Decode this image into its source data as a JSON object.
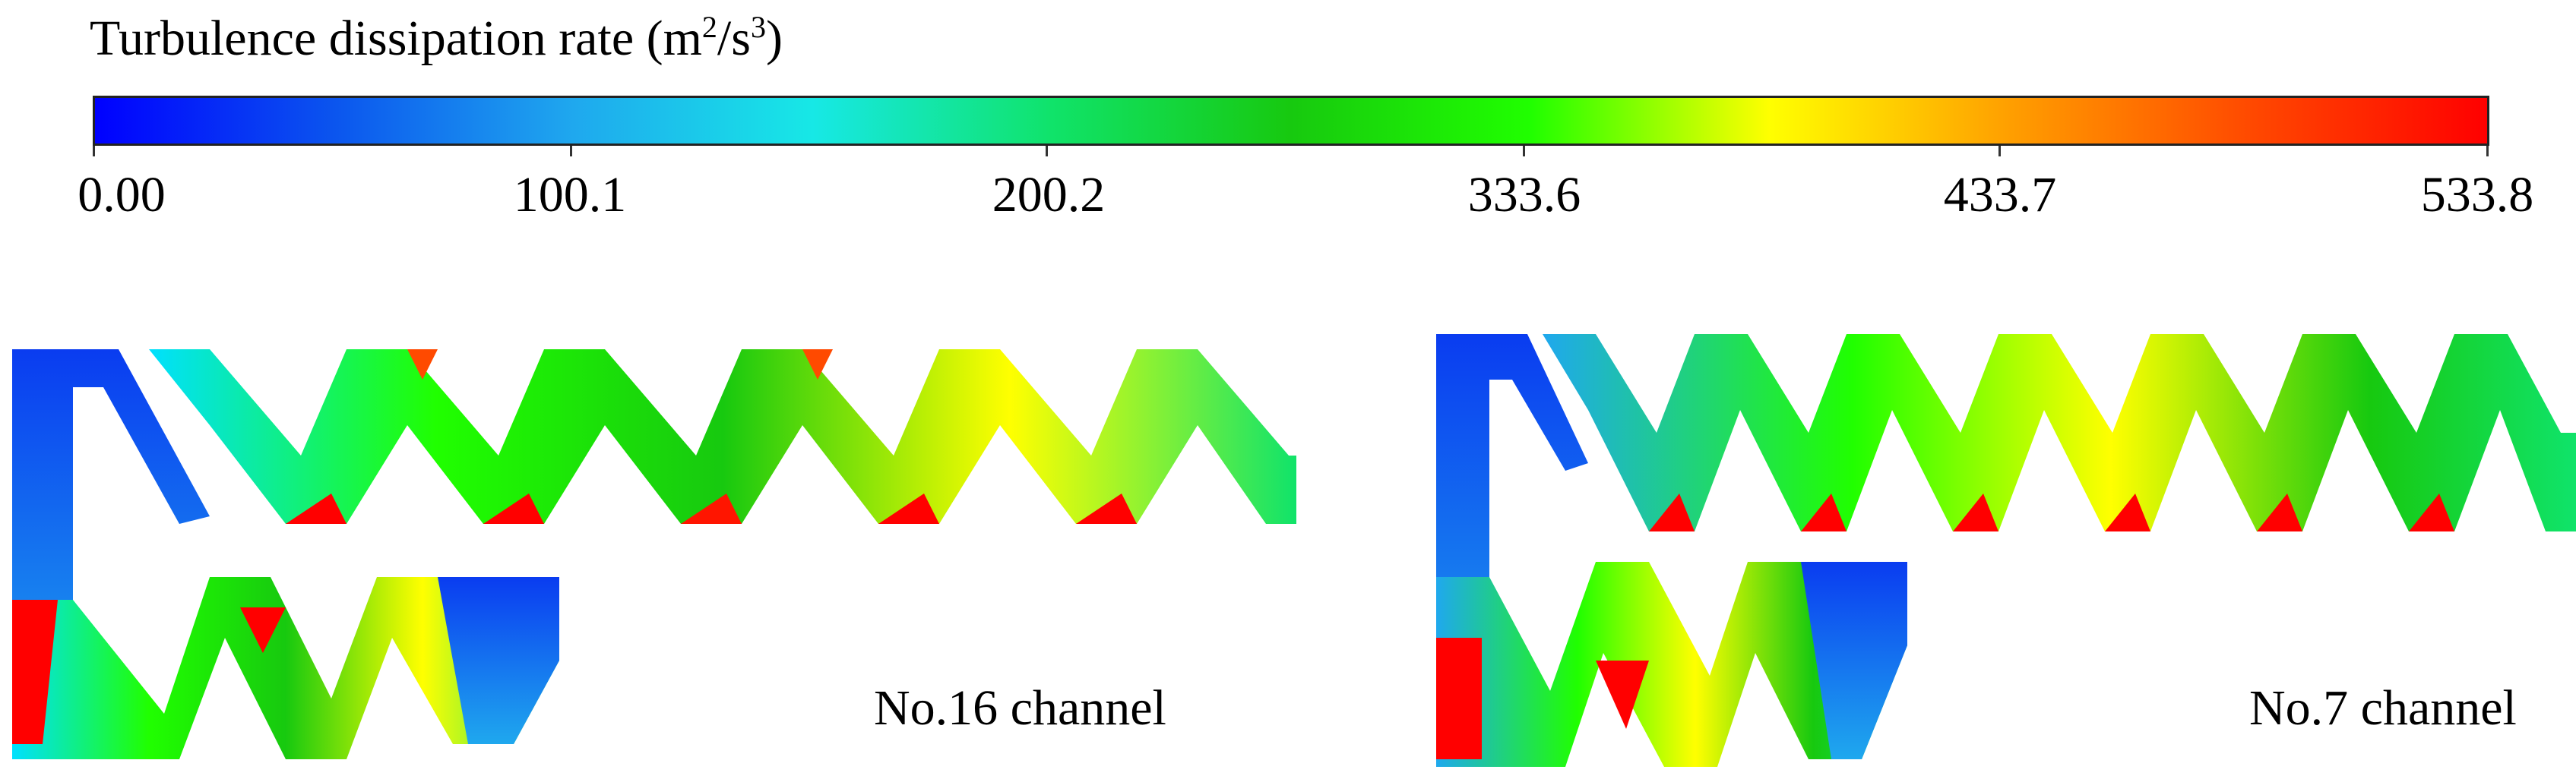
{
  "legend": {
    "title_main": "Turbulence  dissipation rate  (m",
    "title_sup1": "2",
    "title_mid": "/s",
    "title_sup2": "3",
    "title_end": ")",
    "ticks": [
      "0.00",
      "100.1",
      "200.2",
      "333.6",
      "433.7",
      "533.8"
    ],
    "colormap": [
      "#0000ff",
      "#0b55ee",
      "#1fa8ee",
      "#17e8e6",
      "#10e36a",
      "#17c90f",
      "#20ff00",
      "#ffff00",
      "#ff9f00",
      "#ff4a00",
      "#ff0000"
    ]
  },
  "captions": {
    "left": "No.16 channel",
    "right": "No.7 channel"
  }
}
